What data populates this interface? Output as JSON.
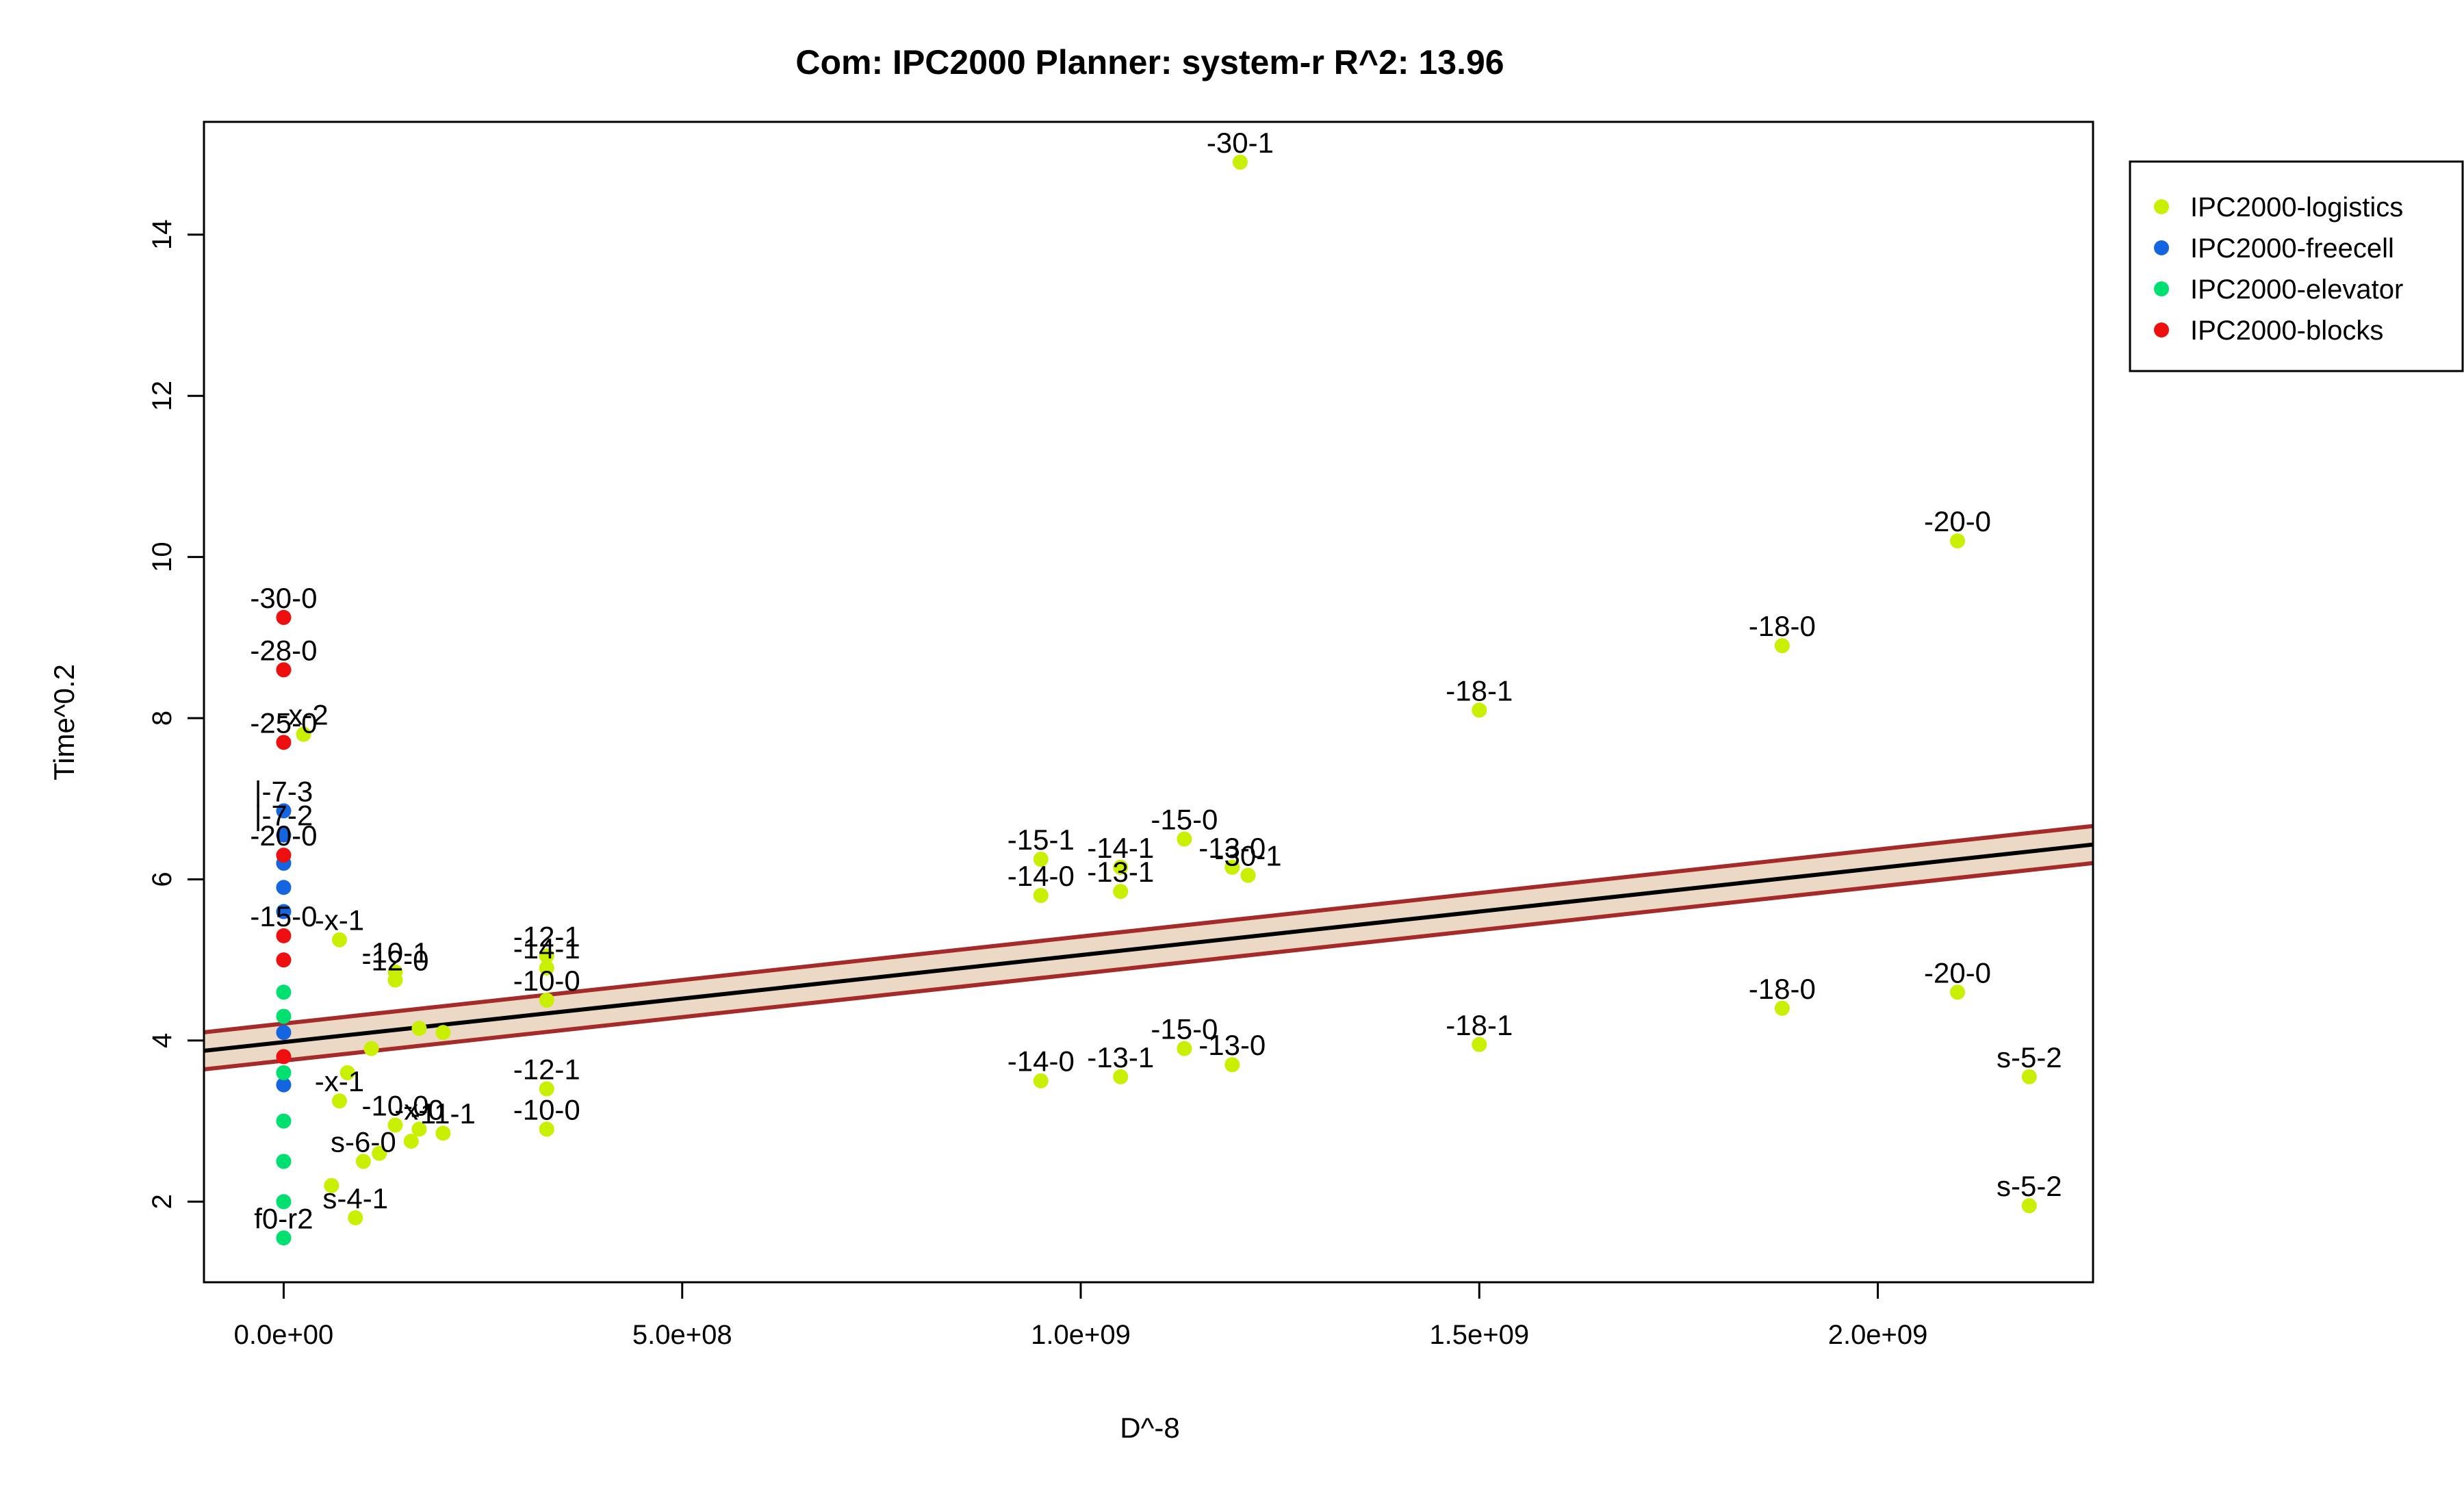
{
  "chart_data": {
    "type": "scatter",
    "title": "Com: IPC2000 Planner: system-r R^2: 13.96",
    "xlabel": "D^-8",
    "ylabel": "Time^0.2",
    "xlim": [
      -100000000,
      2270000000
    ],
    "ylim": [
      1.0,
      15.4
    ],
    "x_ticks": [
      0,
      500000000,
      1000000000,
      1500000000,
      2000000000
    ],
    "x_tick_labels": [
      "0.0e+00",
      "5.0e+08",
      "1.0e+09",
      "1.5e+09",
      "2.0e+09"
    ],
    "y_ticks": [
      2,
      4,
      6,
      8,
      10,
      12,
      14
    ],
    "y_tick_labels": [
      "2",
      "4",
      "6",
      "8",
      "10",
      "12",
      "14"
    ],
    "grid": false,
    "legend_position": "top-right, outside plot",
    "colors": {
      "IPC2000-logistics": "#c8f000",
      "IPC2000-freecell": "#1565e0",
      "IPC2000-elevator": "#00e070",
      "IPC2000-blocks": "#ee1010",
      "fit_line": "#000000",
      "band_edge": "#a52a2a",
      "band_fill": "#ecd9c5"
    },
    "fit": {
      "intercept": 3.98,
      "slope": 1.08e-09,
      "band_halfwidth": 0.23
    },
    "series": [
      {
        "name": "IPC2000-logistics",
        "points": [
          {
            "x": 1200000000,
            "y": 14.9,
            "label": "-30-1"
          },
          {
            "x": 2100000000,
            "y": 10.2,
            "label": "-20-0"
          },
          {
            "x": 1880000000,
            "y": 8.9,
            "label": "-18-0"
          },
          {
            "x": 1500000000,
            "y": 8.1,
            "label": "-18-1"
          },
          {
            "x": 1130000000,
            "y": 6.5,
            "label": "-15-0"
          },
          {
            "x": 950000000,
            "y": 6.25,
            "label": "-15-1"
          },
          {
            "x": 1050000000,
            "y": 6.15,
            "label": "-14-1"
          },
          {
            "x": 1190000000,
            "y": 6.15,
            "label": "-13-0"
          },
          {
            "x": 1210000000,
            "y": 6.05,
            "label": "-30-1"
          },
          {
            "x": 950000000,
            "y": 5.8,
            "label": "-14-0"
          },
          {
            "x": 1050000000,
            "y": 5.85,
            "label": "-13-1"
          },
          {
            "x": 330000000,
            "y": 5.05,
            "label": "-12-1"
          },
          {
            "x": 330000000,
            "y": 4.9,
            "label": "-14-1"
          },
          {
            "x": 330000000,
            "y": 4.5,
            "label": "-10-0"
          },
          {
            "x": 140000000,
            "y": 4.85,
            "label": "-10-1"
          },
          {
            "x": 140000000,
            "y": 4.75,
            "label": "-12-0"
          },
          {
            "x": 70000000,
            "y": 5.25,
            "label": "-x-1"
          },
          {
            "x": 25000000,
            "y": 7.8,
            "label": "-x-2"
          },
          {
            "x": 1880000000,
            "y": 4.4,
            "label": "-18-0"
          },
          {
            "x": 2100000000,
            "y": 4.6,
            "label": "-20-0"
          },
          {
            "x": 1500000000,
            "y": 3.95,
            "label": "-18-1"
          },
          {
            "x": 1130000000,
            "y": 3.9,
            "label": "-15-0"
          },
          {
            "x": 950000000,
            "y": 3.5,
            "label": "-14-0"
          },
          {
            "x": 1050000000,
            "y": 3.55,
            "label": "-13-1"
          },
          {
            "x": 1190000000,
            "y": 3.7,
            "label": "-13-0"
          },
          {
            "x": 2190000000,
            "y": 3.55,
            "label": "s-5-2"
          },
          {
            "x": 2190000000,
            "y": 1.95,
            "label": "s-5-2"
          },
          {
            "x": 330000000,
            "y": 3.4,
            "label": "-12-1"
          },
          {
            "x": 330000000,
            "y": 2.9,
            "label": "-10-0"
          },
          {
            "x": 140000000,
            "y": 2.95,
            "label": "-10-0"
          },
          {
            "x": 170000000,
            "y": 2.9,
            "label": "-x-0"
          },
          {
            "x": 200000000,
            "y": 2.85,
            "label": "-11-1"
          },
          {
            "x": 90000000,
            "y": 1.8,
            "label": "s-4-1"
          },
          {
            "x": 110000000,
            "y": 3.9,
            "label": ""
          },
          {
            "x": 170000000,
            "y": 4.15,
            "label": ""
          },
          {
            "x": 200000000,
            "y": 4.1,
            "label": ""
          },
          {
            "x": 80000000,
            "y": 3.6,
            "label": ""
          },
          {
            "x": 70000000,
            "y": 3.25,
            "label": "-x-1"
          },
          {
            "x": 160000000,
            "y": 2.75,
            "label": ""
          },
          {
            "x": 120000000,
            "y": 2.6,
            "label": ""
          },
          {
            "x": 100000000,
            "y": 2.5,
            "label": "s-6-0"
          },
          {
            "x": 60000000,
            "y": 2.2,
            "label": ""
          }
        ]
      },
      {
        "name": "IPC2000-freecell",
        "points": [
          {
            "x": 0,
            "y": 6.85,
            "label": "|-7-3"
          },
          {
            "x": 0,
            "y": 6.55,
            "label": "|-7-2"
          },
          {
            "x": 0,
            "y": 6.2,
            "label": ""
          },
          {
            "x": 0,
            "y": 5.9,
            "label": ""
          },
          {
            "x": 0,
            "y": 5.6,
            "label": ""
          },
          {
            "x": 0,
            "y": 4.1,
            "label": ""
          },
          {
            "x": 0,
            "y": 3.45,
            "label": ""
          }
        ]
      },
      {
        "name": "IPC2000-elevator",
        "points": [
          {
            "x": 0,
            "y": 1.55,
            "label": "f0-r2"
          },
          {
            "x": 0,
            "y": 2.0,
            "label": ""
          },
          {
            "x": 0,
            "y": 2.5,
            "label": ""
          },
          {
            "x": 0,
            "y": 3.0,
            "label": ""
          },
          {
            "x": 0,
            "y": 3.6,
            "label": ""
          },
          {
            "x": 0,
            "y": 4.3,
            "label": ""
          },
          {
            "x": 0,
            "y": 4.6,
            "label": ""
          }
        ]
      },
      {
        "name": "IPC2000-blocks",
        "points": [
          {
            "x": 0,
            "y": 9.25,
            "label": "-30-0"
          },
          {
            "x": 0,
            "y": 8.6,
            "label": "-28-0"
          },
          {
            "x": 0,
            "y": 7.7,
            "label": "-25-0"
          },
          {
            "x": 0,
            "y": 6.3,
            "label": "-20-0"
          },
          {
            "x": 0,
            "y": 5.3,
            "label": "-15-0"
          },
          {
            "x": 0,
            "y": 5.0,
            "label": ""
          },
          {
            "x": 0,
            "y": 3.8,
            "label": ""
          }
        ]
      }
    ]
  }
}
